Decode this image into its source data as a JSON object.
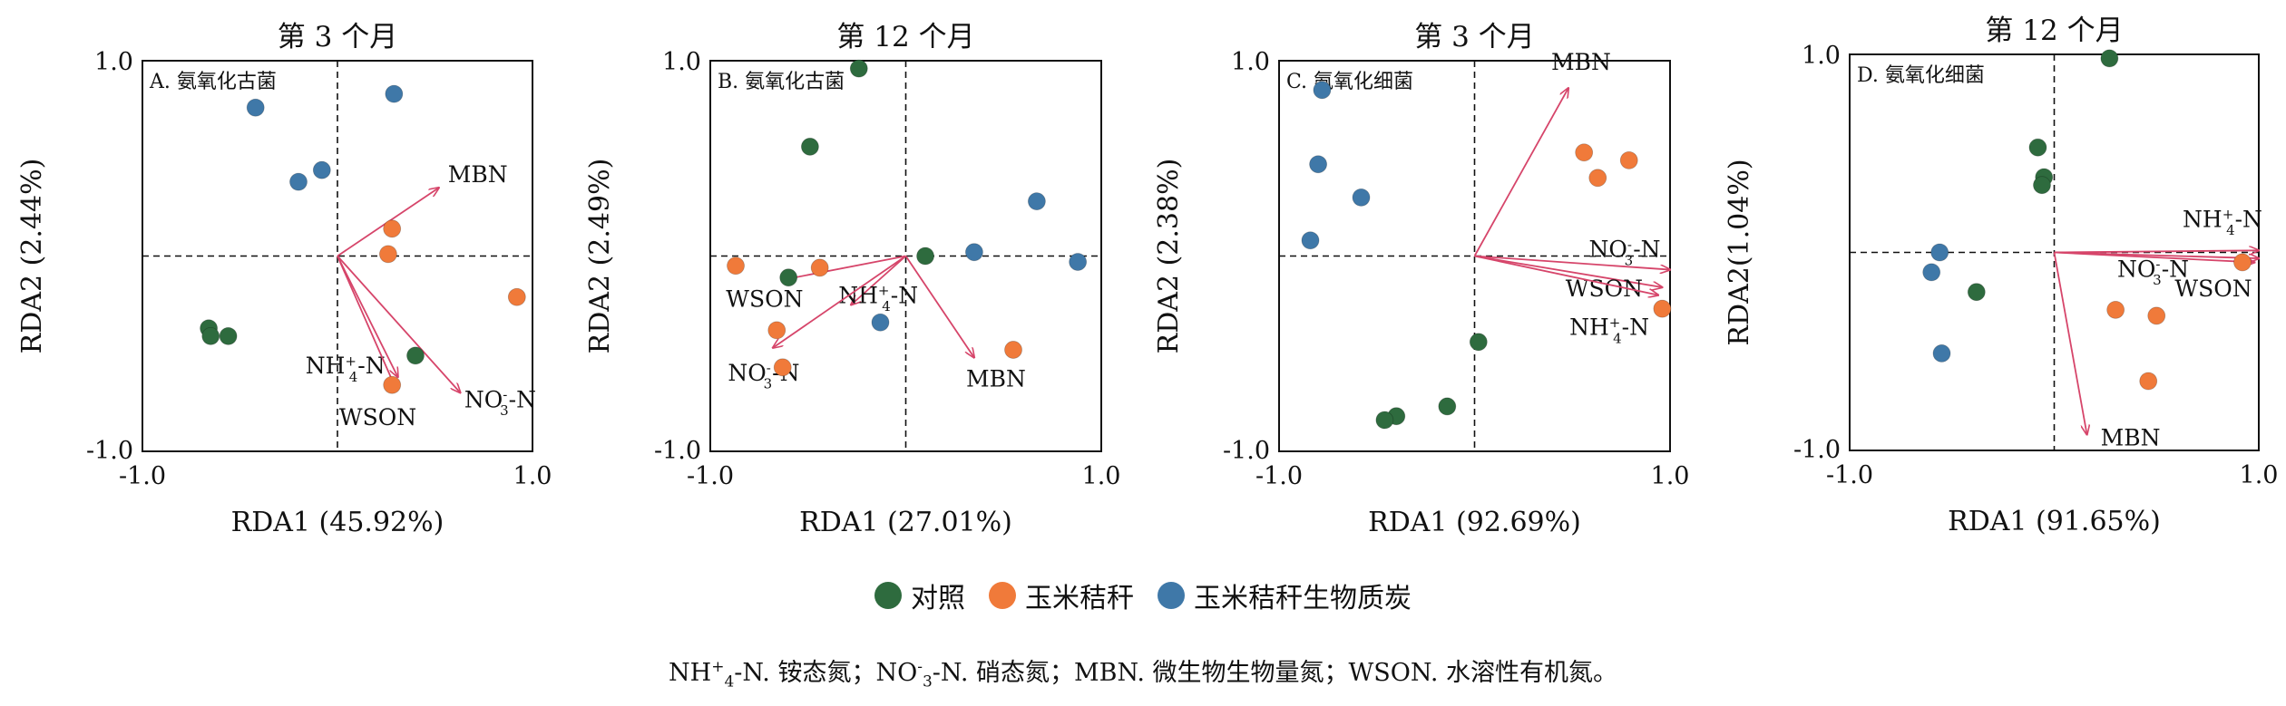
{
  "colors": {
    "control": "#2e6b3e",
    "straw": "#f07a3a",
    "biochar": "#3f78a8",
    "arrow": "#d6456a"
  },
  "legend": {
    "items": [
      {
        "key": "control",
        "label": "对照"
      },
      {
        "key": "straw",
        "label": "玉米秸秆"
      },
      {
        "key": "biochar",
        "label": "玉米秸秆生物质炭"
      }
    ]
  },
  "footnote": {
    "part1": "NH",
    "part1_sup": "+",
    "part1_sub": "4",
    "part1_text": "-N. 铵态氮；NO",
    "part2_sup": "-",
    "part2_sub": "3",
    "part2_text": "-N. 硝态氮；MBN. 微生物生物量氮；WSON. 水溶性有机氮。"
  },
  "chart_data": [
    {
      "type": "scatter",
      "title": "第 3 个月",
      "panel_label": "A. 氨氧化古菌",
      "xlabel": "RDA1 (45.92%)",
      "ylabel": "RDA2 (2.44%)",
      "xlim": [
        -1.0,
        1.0
      ],
      "ylim": [
        -1.0,
        1.0
      ],
      "xticks": [
        "-1.0",
        "1.0"
      ],
      "yticks": [
        "1.0",
        "-1.0"
      ],
      "points": {
        "control": [
          [
            -0.66,
            -0.37
          ],
          [
            -0.65,
            -0.41
          ],
          [
            -0.56,
            -0.41
          ],
          [
            0.4,
            -0.51
          ]
        ],
        "straw": [
          [
            0.28,
            0.14
          ],
          [
            0.26,
            0.01
          ],
          [
            0.28,
            -0.66
          ],
          [
            0.92,
            -0.21
          ]
        ],
        "biochar": [
          [
            -0.42,
            0.76
          ],
          [
            0.29,
            0.83
          ],
          [
            -0.2,
            0.38
          ],
          [
            -0.08,
            0.44
          ]
        ]
      },
      "arrows": [
        {
          "label": "MBN",
          "x": 0.52,
          "y": 0.35
        },
        {
          "label": "NH4+-N",
          "x": 0.31,
          "y": -0.62
        },
        {
          "label": "WSON",
          "x": 0.3,
          "y": -0.68
        },
        {
          "label": "NO3--N",
          "x": 0.63,
          "y": -0.7
        }
      ]
    },
    {
      "type": "scatter",
      "title": "第 12 个月",
      "panel_label": "B. 氨氧化古菌",
      "xlabel": "RDA1 (27.01%)",
      "ylabel": "RDA2 (2.49%)",
      "xlim": [
        -1.0,
        1.0
      ],
      "ylim": [
        -1.0,
        1.0
      ],
      "xticks": [
        "-1.0",
        "1.0"
      ],
      "yticks": [
        "1.0",
        "-1.0"
      ],
      "points": {
        "control": [
          [
            -0.24,
            0.96
          ],
          [
            -0.49,
            0.56
          ],
          [
            -0.6,
            -0.11
          ],
          [
            0.1,
            0.0
          ]
        ],
        "straw": [
          [
            -0.87,
            -0.05
          ],
          [
            -0.44,
            -0.06
          ],
          [
            -0.66,
            -0.38
          ],
          [
            -0.63,
            -0.57
          ],
          [
            0.55,
            -0.48
          ]
        ],
        "biochar": [
          [
            -0.13,
            -0.34
          ],
          [
            0.35,
            0.02
          ],
          [
            0.67,
            0.28
          ],
          [
            0.88,
            -0.03
          ]
        ]
      },
      "arrows": [
        {
          "label": "WSON",
          "x": -0.62,
          "y": -0.12
        },
        {
          "label": "NH4+-N",
          "x": -0.28,
          "y": -0.25
        },
        {
          "label": "NO3--N",
          "x": -0.68,
          "y": -0.47
        },
        {
          "label": "MBN",
          "x": 0.35,
          "y": -0.52
        }
      ]
    },
    {
      "type": "scatter",
      "title": "第 3 个月",
      "panel_label": "C. 氨氧化细菌",
      "xlabel": "RDA1 (92.69%)",
      "ylabel": "RDA2 (2.38%)",
      "xlim": [
        -1.0,
        1.0
      ],
      "ylim": [
        -1.0,
        1.0
      ],
      "xticks": [
        "-1.0",
        "1.0"
      ],
      "yticks": [
        "1.0",
        "-1.0"
      ],
      "points": {
        "control": [
          [
            0.02,
            -0.44
          ],
          [
            -0.14,
            -0.77
          ],
          [
            -0.4,
            -0.82
          ],
          [
            -0.46,
            -0.84
          ]
        ],
        "straw": [
          [
            0.56,
            0.53
          ],
          [
            0.63,
            0.4
          ],
          [
            0.79,
            0.49
          ],
          [
            0.96,
            -0.27
          ]
        ],
        "biochar": [
          [
            -0.78,
            0.85
          ],
          [
            -0.8,
            0.47
          ],
          [
            -0.58,
            0.3
          ],
          [
            -0.84,
            0.08
          ]
        ]
      },
      "arrows": [
        {
          "label": "MBN",
          "x": 0.48,
          "y": 0.86
        },
        {
          "label": "NO3--N",
          "x": 1.0,
          "y": -0.07
        },
        {
          "label": "WSON",
          "x": 0.96,
          "y": -0.16
        },
        {
          "label": "NH4+-N",
          "x": 0.94,
          "y": -0.2
        }
      ]
    },
    {
      "type": "scatter",
      "title": "第 12 个月",
      "panel_label": "D. 氨氧化细菌",
      "xlabel": "RDA1 (91.65%)",
      "ylabel": "RDA2(1.04%)",
      "xlim": [
        -1.0,
        1.0
      ],
      "ylim": [
        -1.0,
        1.0
      ],
      "xticks": [
        "-1.0",
        "1.0"
      ],
      "yticks": [
        "1.0",
        "-1.0"
      ],
      "points": {
        "control": [
          [
            0.27,
            0.98
          ],
          [
            -0.08,
            0.53
          ],
          [
            -0.05,
            0.38
          ],
          [
            -0.06,
            0.34
          ],
          [
            -0.38,
            -0.2
          ]
        ],
        "straw": [
          [
            0.3,
            -0.29
          ],
          [
            0.5,
            -0.32
          ],
          [
            0.92,
            -0.05
          ],
          [
            0.46,
            -0.65
          ]
        ],
        "biochar": [
          [
            -0.6,
            -0.1
          ],
          [
            -0.56,
            0.0
          ],
          [
            -0.55,
            -0.51
          ]
        ]
      },
      "arrows": [
        {
          "label": "NH4+-N",
          "x": 1.0,
          "y": 0.01
        },
        {
          "label": "NO3--N",
          "x": 0.98,
          "y": -0.05
        },
        {
          "label": "WSON",
          "x": 1.0,
          "y": -0.03
        },
        {
          "label": "MBN",
          "x": 0.16,
          "y": -0.92
        }
      ]
    }
  ]
}
